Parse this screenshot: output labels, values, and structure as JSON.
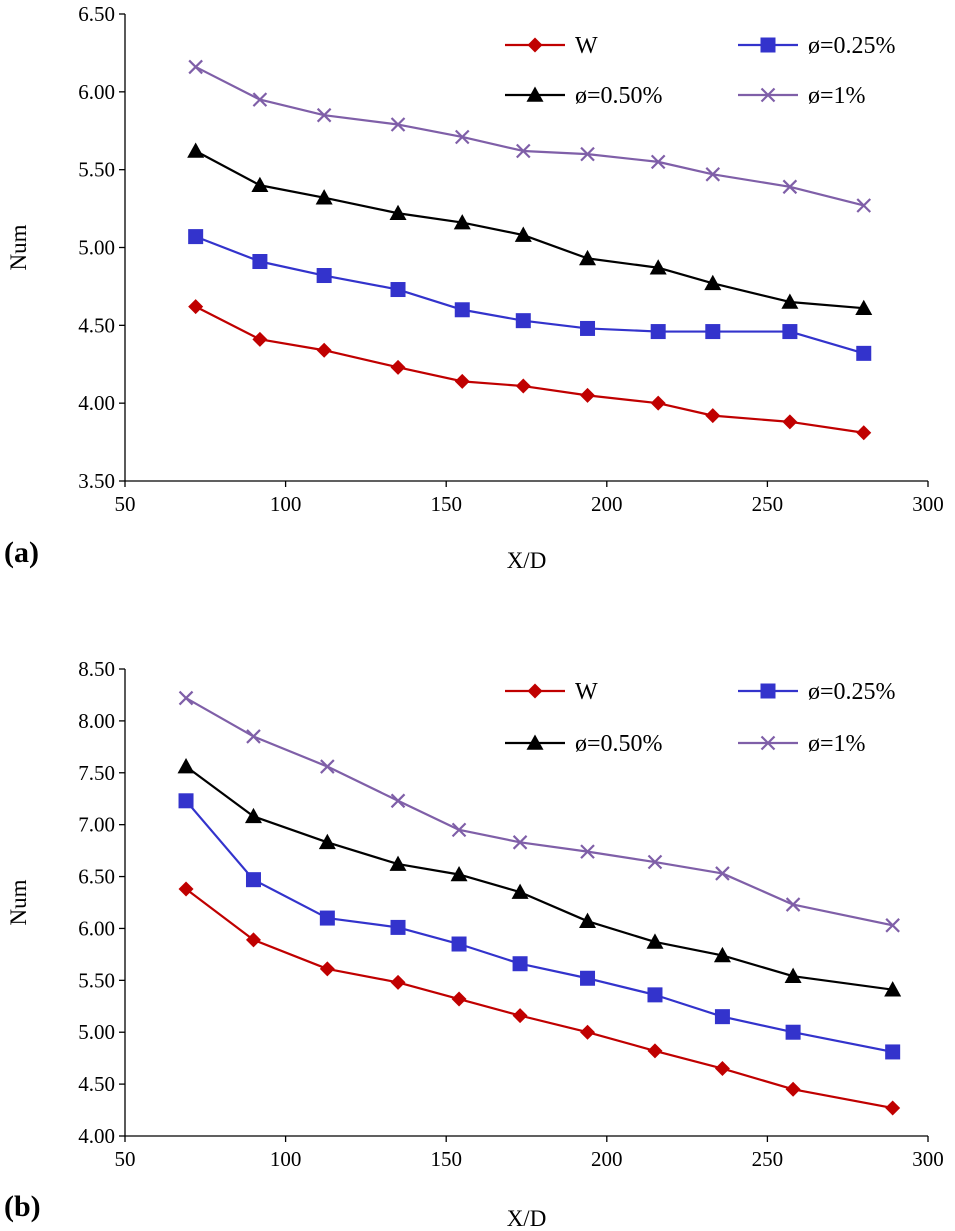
{
  "chart_data": [
    {
      "type": "line",
      "panel_label": "(a)",
      "xlabel": "X/D",
      "ylabel": "Num",
      "xlim": [
        50,
        300
      ],
      "ylim": [
        3.5,
        6.5
      ],
      "x_ticks": [
        "50",
        "100",
        "150",
        "200",
        "250",
        "300"
      ],
      "y_ticks": [
        "3.50",
        "4.00",
        "4.50",
        "5.00",
        "5.50",
        "6.00",
        "6.50"
      ],
      "legend_position": "top-right",
      "x": [
        72,
        92,
        112,
        135,
        155,
        174,
        194,
        216,
        233,
        257,
        280
      ],
      "series": [
        {
          "name": "W",
          "color": "#c00000",
          "marker": "diamond",
          "values": [
            4.62,
            4.41,
            4.34,
            4.23,
            4.14,
            4.11,
            4.05,
            4.0,
            3.92,
            3.88,
            3.81
          ]
        },
        {
          "name": "ø=0.25%",
          "color": "#3333cc",
          "marker": "square",
          "values": [
            5.07,
            4.91,
            4.82,
            4.73,
            4.6,
            4.53,
            4.48,
            4.46,
            4.46,
            4.46,
            4.32
          ]
        },
        {
          "name": "ø=0.50%",
          "color": "#000000",
          "marker": "triangle",
          "values": [
            5.62,
            5.4,
            5.32,
            5.22,
            5.16,
            5.08,
            4.93,
            4.87,
            4.77,
            4.65,
            4.61
          ]
        },
        {
          "name": "ø=1%",
          "color": "#7f5fa8",
          "marker": "cross",
          "values": [
            6.16,
            5.95,
            5.85,
            5.79,
            5.71,
            5.62,
            5.6,
            5.55,
            5.47,
            5.39,
            5.27
          ]
        }
      ]
    },
    {
      "type": "line",
      "panel_label": "(b)",
      "xlabel": "X/D",
      "ylabel": "Num",
      "xlim": [
        50,
        300
      ],
      "ylim": [
        4.0,
        8.5
      ],
      "x_ticks": [
        "50",
        "100",
        "150",
        "200",
        "250",
        "300"
      ],
      "y_ticks": [
        "4.00",
        "4.50",
        "5.00",
        "5.50",
        "6.00",
        "6.50",
        "7.00",
        "7.50",
        "8.00",
        "8.50"
      ],
      "legend_position": "top-right",
      "x": [
        69,
        90,
        113,
        135,
        154,
        173,
        194,
        215,
        236,
        258,
        289
      ],
      "series": [
        {
          "name": "W",
          "color": "#c00000",
          "marker": "diamond",
          "values": [
            6.38,
            5.89,
            5.61,
            5.48,
            5.32,
            5.16,
            5.0,
            4.82,
            4.65,
            4.45,
            4.27
          ]
        },
        {
          "name": "ø=0.25%",
          "color": "#3333cc",
          "marker": "square",
          "values": [
            7.23,
            6.47,
            6.1,
            6.01,
            5.85,
            5.66,
            5.52,
            5.36,
            5.15,
            5.0,
            4.81
          ]
        },
        {
          "name": "ø=0.50%",
          "color": "#000000",
          "marker": "triangle",
          "values": [
            7.56,
            7.08,
            6.83,
            6.62,
            6.52,
            6.35,
            6.07,
            5.87,
            5.74,
            5.54,
            5.41
          ]
        },
        {
          "name": "ø=1%",
          "color": "#7f5fa8",
          "marker": "cross",
          "values": [
            8.22,
            7.85,
            7.56,
            7.23,
            6.95,
            6.83,
            6.74,
            6.64,
            6.53,
            6.23,
            6.03
          ]
        }
      ]
    }
  ]
}
